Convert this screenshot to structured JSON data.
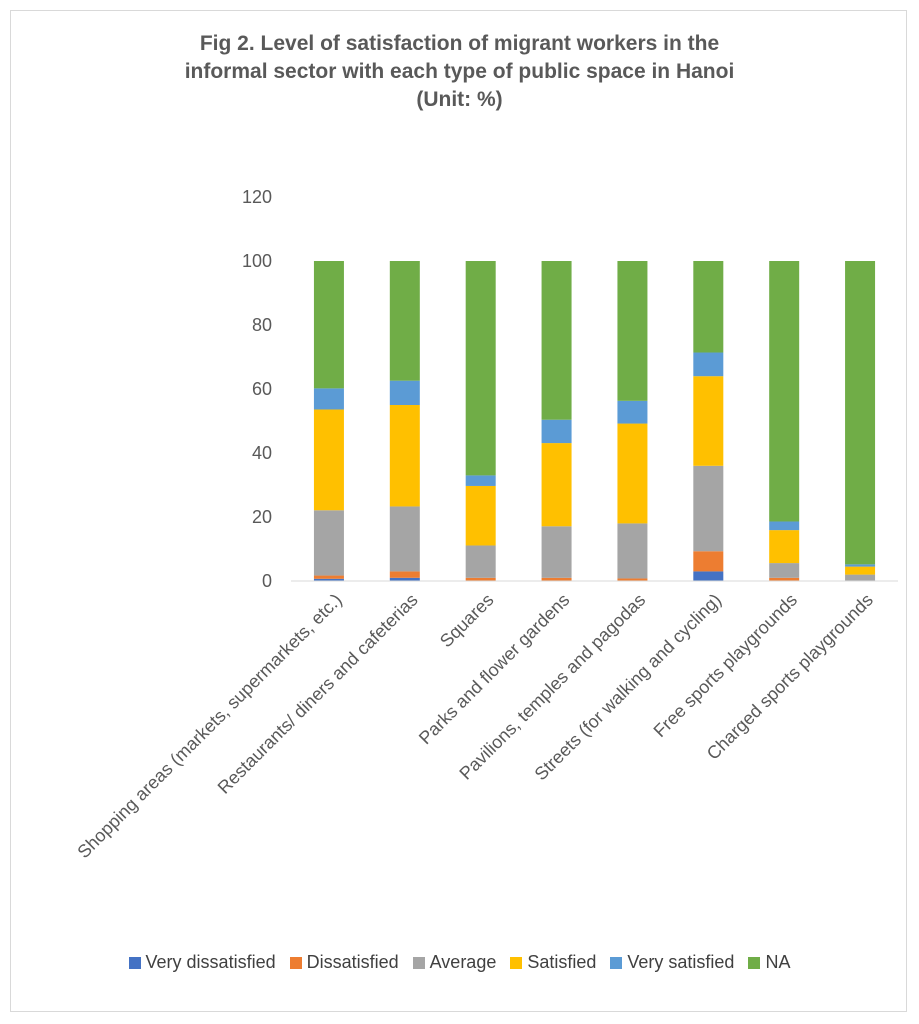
{
  "chart_data": {
    "type": "bar",
    "stacked": true,
    "title_lines": [
      "Fig 2. Level of satisfaction of migrant workers in the",
      "informal sector with each type of public space in Hanoi",
      "(Unit: %)"
    ],
    "categories": [
      "Shopping areas (markets, supermarkets, etc.)",
      "Restaurants/ diners  and cafeterias",
      "Squares",
      "Parks and flower gardens",
      "Pavilions, temples and pagodas",
      "Streets (for walking and cycling)",
      "Free sports playgrounds",
      "Charged sports playgrounds"
    ],
    "series": [
      {
        "name": "Very dissatisfied",
        "color": "#4472c4",
        "values": [
          0.7,
          1,
          0,
          0,
          0,
          3,
          0,
          0
        ]
      },
      {
        "name": "Dissatisfied",
        "color": "#ed7d31",
        "values": [
          1,
          2,
          1,
          1,
          0.8,
          6.3,
          1,
          0
        ]
      },
      {
        "name": "Average",
        "color": "#a5a5a5",
        "values": [
          20.4,
          20.3,
          10.1,
          16.1,
          17.2,
          26.7,
          4.6,
          2
        ]
      },
      {
        "name": "Satisfied",
        "color": "#ffc000",
        "values": [
          31.5,
          31.7,
          18.6,
          26,
          31.2,
          28,
          10.3,
          2.5
        ]
      },
      {
        "name": "Very satisfied",
        "color": "#5b9bd5",
        "values": [
          6.6,
          7.6,
          3.3,
          7.3,
          7.1,
          7.4,
          2.7,
          0.7
        ]
      },
      {
        "name": "NA",
        "color": "#70ad47",
        "values": [
          39.8,
          37.4,
          67,
          49.6,
          43.7,
          28.6,
          81.4,
          94.8
        ]
      }
    ],
    "ylim": [
      0,
      120
    ],
    "yticks": [
      "0",
      "20",
      "40",
      "60",
      "80",
      "100",
      "120"
    ],
    "grid": false,
    "legend_position": "bottom"
  }
}
